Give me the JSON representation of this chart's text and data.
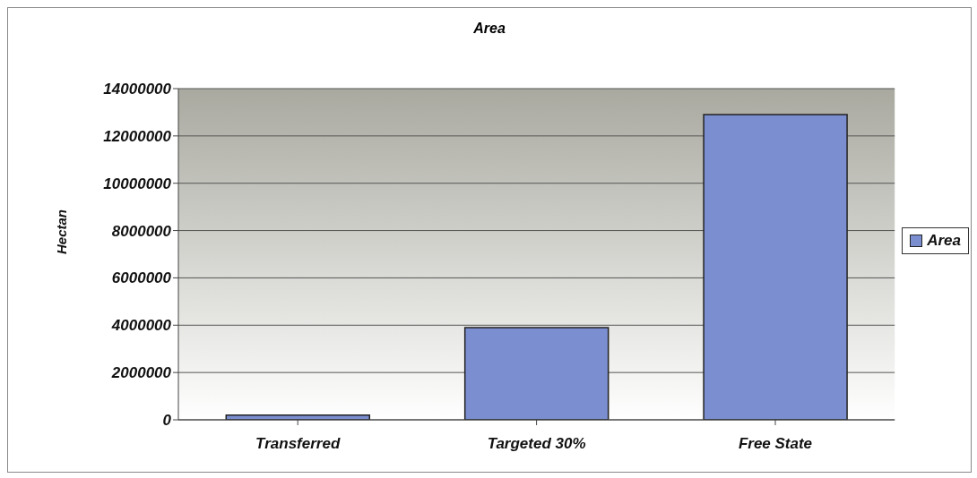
{
  "chart_data": {
    "type": "bar",
    "title": "Area",
    "ylabel": "Hectan",
    "categories": [
      "Transferred",
      "Targeted 30%",
      "Free State"
    ],
    "series": [
      {
        "name": "Area",
        "color": "#7b8fd0",
        "values": [
          200000,
          3900000,
          12900000
        ]
      }
    ],
    "ylim": [
      0,
      14000000
    ],
    "yticks": [
      0,
      2000000,
      4000000,
      6000000,
      8000000,
      10000000,
      12000000,
      14000000
    ],
    "grid": "y",
    "legend": "right"
  }
}
